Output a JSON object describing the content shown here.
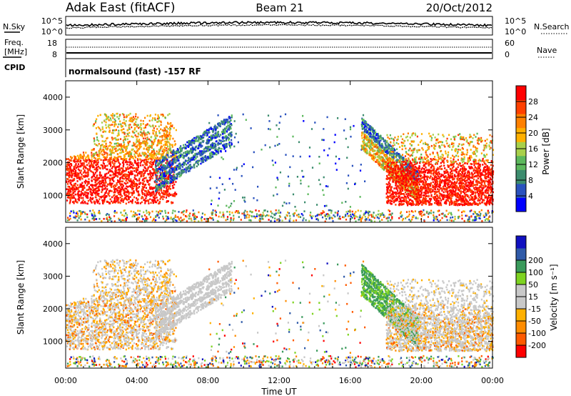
{
  "header": {
    "station": "Adak East (fitACF)",
    "beam": "Beam 21",
    "date": "20/Oct/2012"
  },
  "noise_panel": {
    "left_label": "N.Sky",
    "right_label": "N.Search",
    "left_ticks": [
      "10^5",
      "10^0"
    ],
    "right_ticks": [
      "10^5",
      "10^0"
    ]
  },
  "freq_panel": {
    "left_label_line1": "Freq.",
    "left_label_line2": "[MHz]",
    "right_label": "Nave",
    "left_ticks": [
      "18",
      "8"
    ],
    "right_ticks": [
      "60",
      "0"
    ],
    "cpid_label": "CPID",
    "cpid_text": "normalsound (fast) -157 RF"
  },
  "colors": {
    "power": [
      "#0000ff",
      "#2a52be",
      "#3c8c6e",
      "#5cb85c",
      "#a8d04a",
      "#ffb000",
      "#ff8000",
      "#ff4000",
      "#ff0000"
    ],
    "velocity": [
      "#ff0000",
      "#ff5a00",
      "#ff8c00",
      "#ffb000",
      "#c8c8c8",
      "#c8c8c8",
      "#7ed321",
      "#3a9a5b",
      "#2f5aa8",
      "#1010c0"
    ]
  },
  "chart_data": [
    {
      "type": "heatmap",
      "name": "power",
      "ylabel": "Slant Range [km]",
      "yticks": [
        1000,
        2000,
        3000,
        4000
      ],
      "ylim": [
        180,
        4500
      ],
      "xlim": [
        0,
        24
      ],
      "colorbar_label": "Power [dB]",
      "colorbar_ticks": [
        4,
        8,
        12,
        16,
        20,
        24,
        28
      ],
      "colorbar_range": [
        0,
        32
      ]
    },
    {
      "type": "heatmap",
      "name": "velocity",
      "ylabel": "Slant Range [km]",
      "yticks": [
        1000,
        2000,
        3000,
        4000
      ],
      "ylim": [
        180,
        4500
      ],
      "xlim": [
        0,
        24
      ],
      "xticks": [
        "00:00",
        "04:00",
        "08:00",
        "12:00",
        "16:00",
        "20:00",
        "00:00"
      ],
      "xlabel": "Time UT",
      "colorbar_label": "Velocity [m s⁻¹]",
      "colorbar_ticks": [
        -200,
        -100,
        -50,
        -15,
        15,
        50,
        100,
        200
      ]
    }
  ]
}
